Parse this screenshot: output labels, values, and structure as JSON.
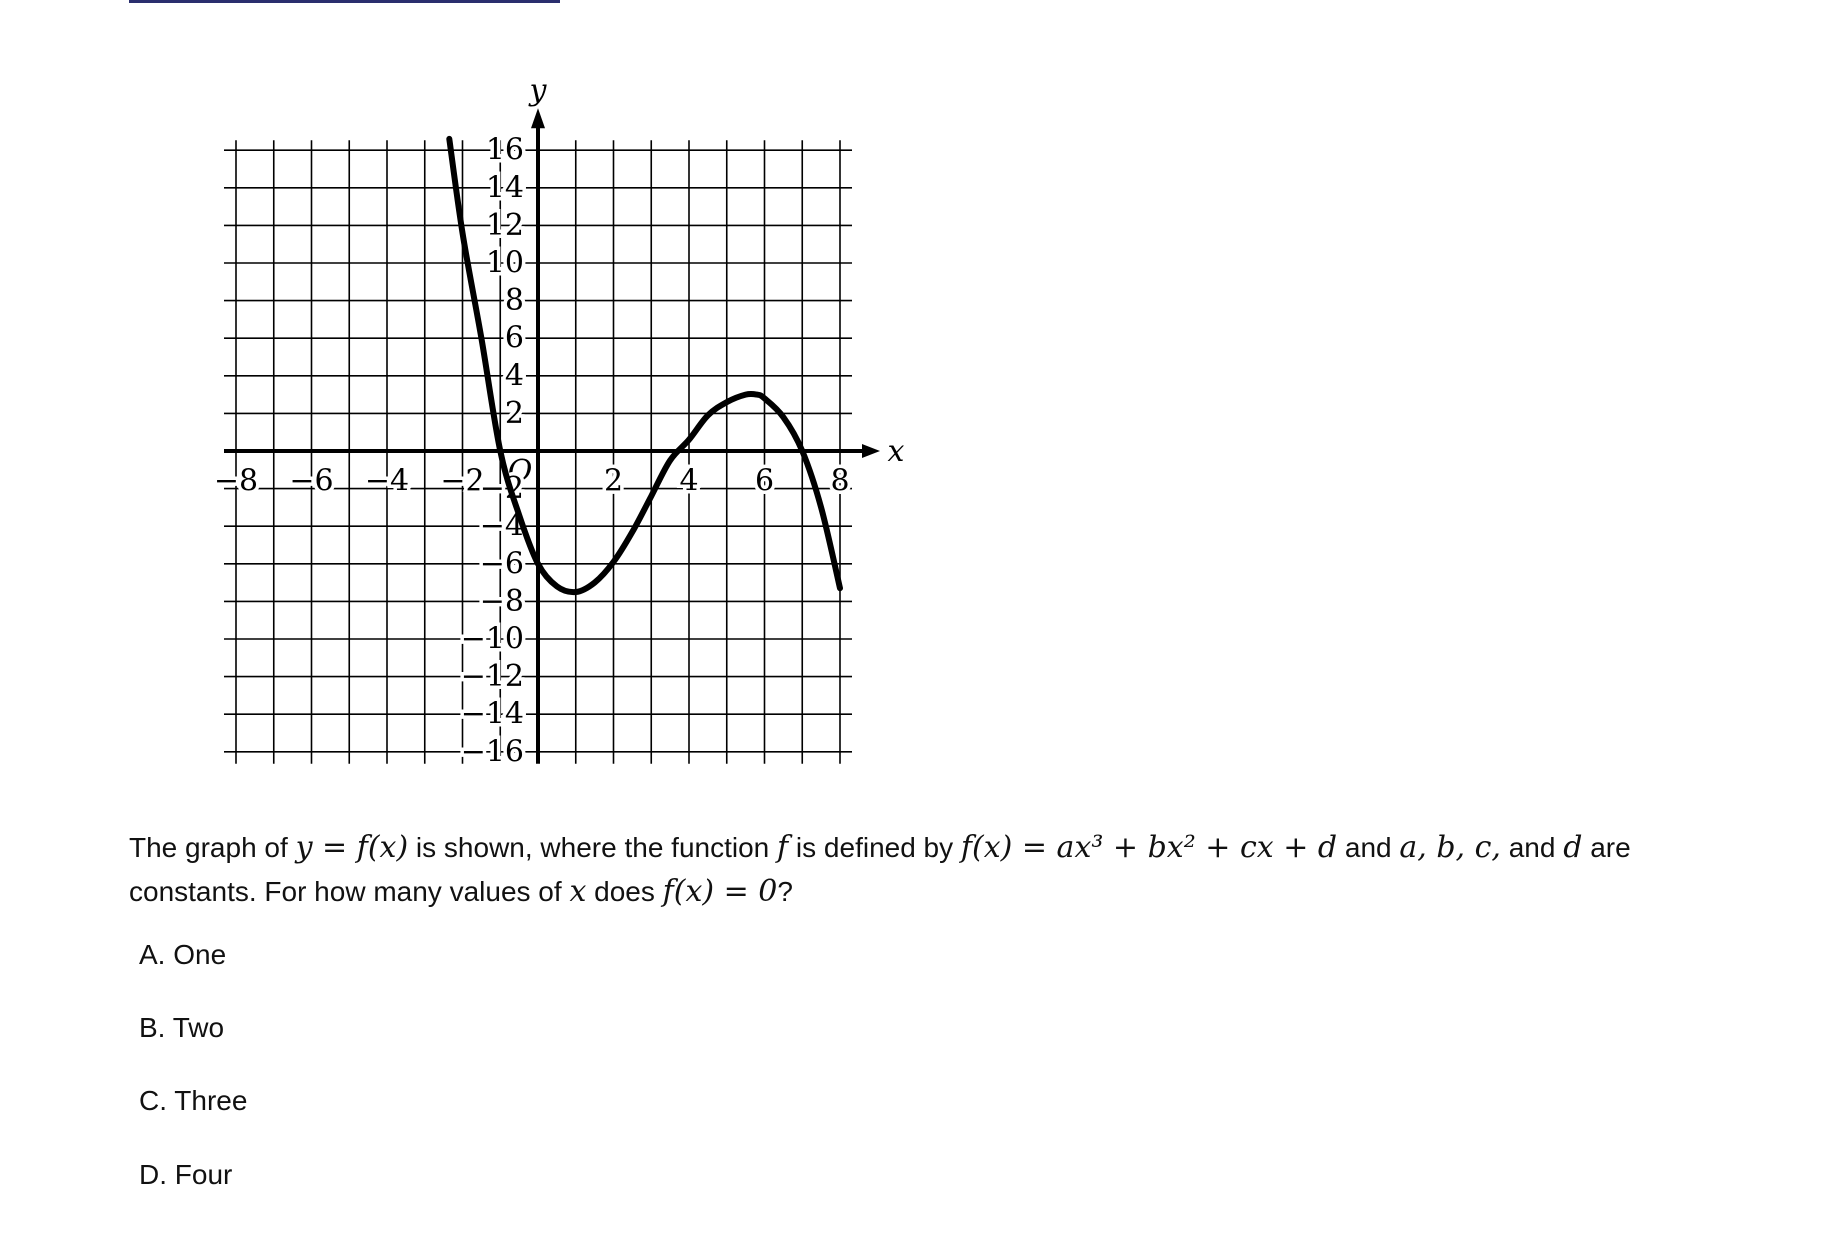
{
  "question": {
    "part1": "The graph of ",
    "math1": "y = f(x)",
    "part2": " is shown, where the function ",
    "math2": "f",
    "part3": " is defined by ",
    "math3": "f(x) = ax³ + bx² + cx + d",
    "part4": " and ",
    "math4": "a, b, c,",
    "part5": " and ",
    "math5": "d",
    "part6": " are constants. For how many values of ",
    "math6": "x",
    "part7": " does ",
    "math7": "f(x) = 0",
    "part8": "?"
  },
  "choices": [
    {
      "label": "A. One"
    },
    {
      "label": "B. Two"
    },
    {
      "label": "C. Three"
    },
    {
      "label": "D. Four"
    }
  ],
  "chart_data": {
    "type": "line",
    "title": "",
    "xlabel": "x",
    "ylabel": "y",
    "xlim": [
      -8,
      8
    ],
    "ylim": [
      -16,
      16
    ],
    "grid": true,
    "origin_label": "O",
    "x_ticks": [
      -8,
      -6,
      -4,
      -2,
      2,
      4,
      6,
      8
    ],
    "x_tick_labels": [
      "−8",
      "−6",
      "−4",
      "−2",
      "2",
      "4",
      "6",
      "8"
    ],
    "y_ticks": [
      16,
      14,
      12,
      10,
      8,
      6,
      4,
      2,
      -2,
      -4,
      -6,
      -8,
      -10,
      -12,
      -14,
      -16
    ],
    "y_tick_labels": [
      "16",
      "14",
      "12",
      "10",
      "8",
      "6",
      "4",
      "2",
      "−2",
      "−4",
      "−6",
      "−8",
      "−10",
      "−12",
      "−14",
      "−16"
    ],
    "series": [
      {
        "x": [
          -2.35,
          -2.0,
          -1.5,
          -1.0,
          -0.5,
          0.0,
          0.5,
          1.0,
          1.5,
          2.0,
          2.5,
          3.0,
          3.5,
          4.0,
          4.5,
          5.0,
          5.5,
          5.8,
          6.0,
          6.5,
          7.0,
          7.5,
          8.0
        ],
        "y": [
          16.6,
          11.6,
          6.0,
          0.0,
          -3.4,
          -6.0,
          -7.2,
          -7.5,
          -7.0,
          -5.9,
          -4.3,
          -2.4,
          -0.5,
          0.6,
          1.9,
          2.6,
          3.0,
          3.0,
          2.8,
          1.8,
          0.0,
          -3.0,
          -7.3
        ]
      }
    ],
    "color": "#000000"
  }
}
